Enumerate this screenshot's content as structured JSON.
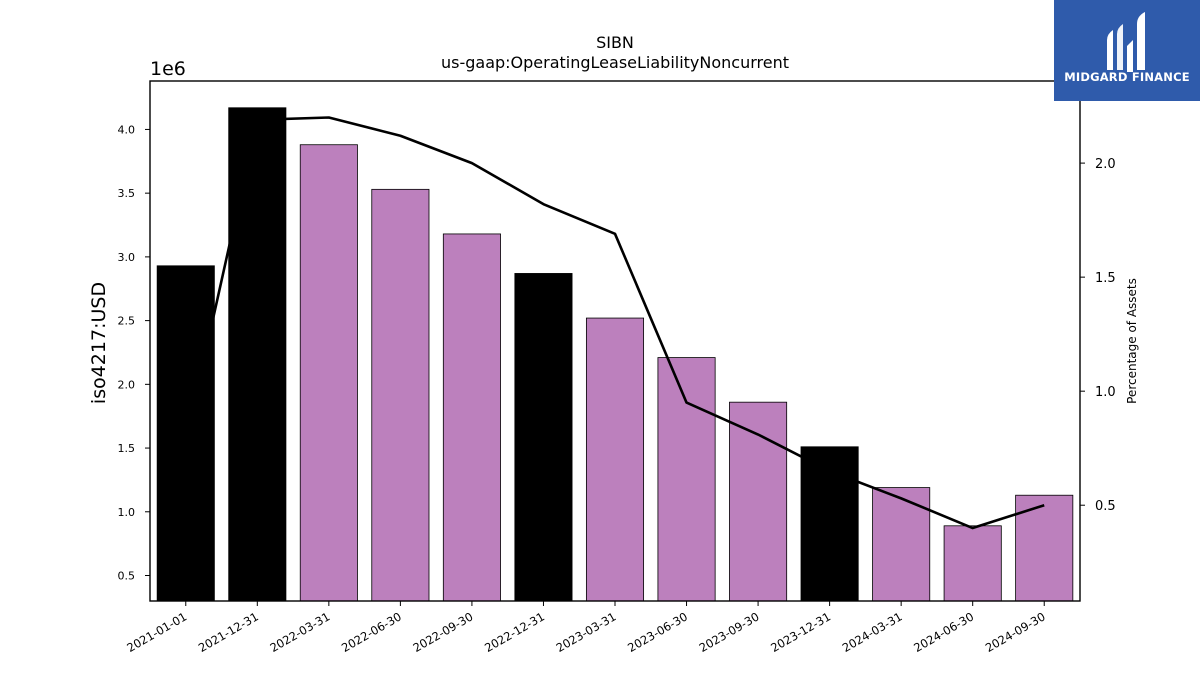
{
  "chart_data": {
    "type": "bar",
    "title": "SIBN",
    "subtitle": "us-gaap:OperatingLeaseLiabilityNoncurrent",
    "ylabel": "iso4217:USD",
    "y2label": "Percentage of Assets",
    "y_multiplier_label": "1e6",
    "categories": [
      "2021-01-01",
      "2021-12-31",
      "2022-03-31",
      "2022-06-30",
      "2022-09-30",
      "2022-12-31",
      "2023-03-31",
      "2023-06-30",
      "2023-09-30",
      "2023-12-31",
      "2024-03-31",
      "2024-06-30",
      "2024-09-30"
    ],
    "values": [
      2930000,
      4170000,
      3880000,
      3530000,
      3180000,
      2870000,
      2520000,
      2210000,
      1860000,
      1510000,
      1190000,
      890000,
      1130000
    ],
    "bar_colors": [
      "#000000",
      "#000000",
      "#bc80bd",
      "#bc80bd",
      "#bc80bd",
      "#000000",
      "#bc80bd",
      "#bc80bd",
      "#bc80bd",
      "#000000",
      "#bc80bd",
      "#bc80bd",
      "#bc80bd"
    ],
    "line_series": {
      "name": "Percentage of Assets",
      "values": [
        0.78,
        2.19,
        2.2,
        2.12,
        2.0,
        1.82,
        1.69,
        0.95,
        0.81,
        0.65,
        0.53,
        0.4,
        0.5
      ]
    },
    "ylim": [
      300000,
      4380000
    ],
    "y2lim": [
      0.08,
      2.36
    ],
    "yticks": [
      0.5,
      1.0,
      1.5,
      2.0,
      2.5,
      3.0,
      3.5,
      4.0
    ],
    "ytick_labels": [
      "0.5",
      "1.0",
      "1.5",
      "2.0",
      "2.5",
      "3.0",
      "3.5",
      "4.0"
    ],
    "y2ticks": [
      0.5,
      1.0,
      1.5,
      2.0
    ],
    "y2tick_labels": [
      "0.5",
      "1.0",
      "1.5",
      "2.0"
    ],
    "grid": false
  },
  "logo": {
    "text": "MIDGARD FINANCE"
  },
  "colors": {
    "annual": "#000000",
    "quarterly": "#bc80bd",
    "logo_bg": "#2f5bab"
  }
}
